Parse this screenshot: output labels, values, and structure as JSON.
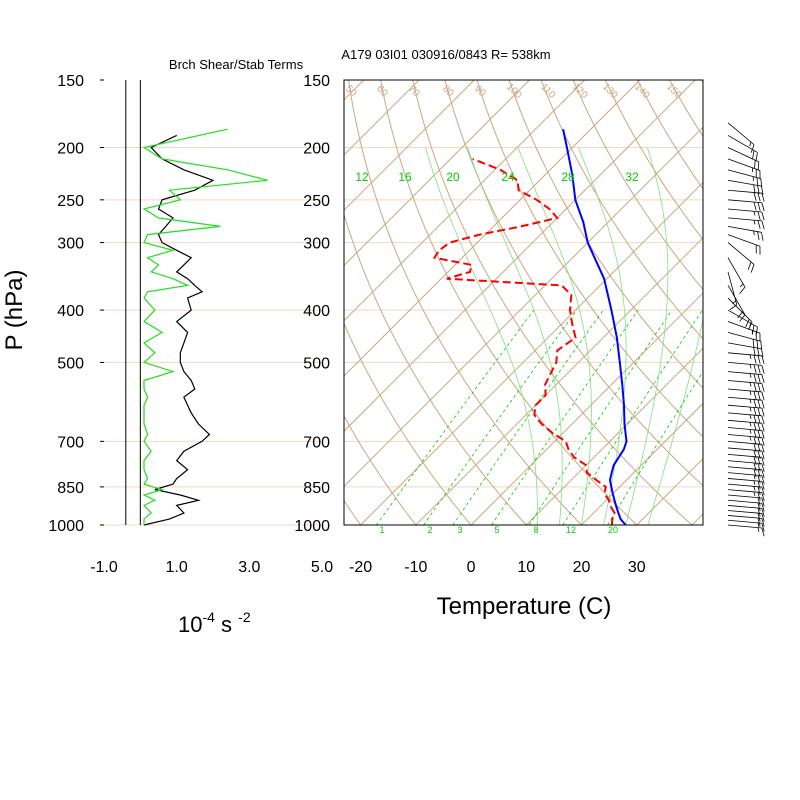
{
  "colors": {
    "background": "#ffffff",
    "axis": "#000000",
    "dry_adiabat": "#c8a882",
    "isotherm": "#c8a882",
    "mixing_ratio": "#00cc00",
    "moist_adiabat": "#7fe07f",
    "shear_term": "#000000",
    "stability_term": "#22dd22",
    "temperature": "#0000ff",
    "dewpoint": "#ff0000",
    "wind_barb": "#000000"
  },
  "chart_data": [
    {
      "type": "line",
      "title": "Brch Shear/Stab Terms",
      "ylabel": "P (hPa)",
      "xlabel_main": "10",
      "xlabel_sup1": "-4",
      "xlabel_unit": " s ",
      "xlabel_sup2": "-2",
      "y_scale": "log-pressure",
      "ylim": [
        1000,
        150
      ],
      "xlim": [
        -1.0,
        5.0
      ],
      "x_ticks": [
        -1.0,
        1.0,
        3.0,
        5.0
      ],
      "x_tick_labels": [
        "-1.0",
        "1.0",
        "3.0",
        "5.0"
      ],
      "y_ticks": [
        150,
        200,
        250,
        300,
        400,
        500,
        700,
        850,
        1000
      ],
      "y_tick_labels": [
        "150",
        "200",
        "250",
        "300",
        "400",
        "500",
        "700",
        "850",
        "1000"
      ],
      "reference_lines_x": [
        -0.4,
        0.0
      ],
      "series": [
        {
          "key": "shear",
          "p": [
            190,
            200,
            210,
            220,
            230,
            240,
            250,
            260,
            270,
            280,
            290,
            300,
            310,
            320,
            330,
            340,
            350,
            360,
            370,
            380,
            400,
            420,
            440,
            460,
            480,
            500,
            520,
            540,
            560,
            580,
            600,
            620,
            650,
            680,
            700,
            730,
            760,
            790,
            820,
            840,
            860,
            880,
            900,
            920,
            950,
            975,
            1000
          ],
          "x": [
            1.0,
            0.3,
            0.6,
            1.2,
            2.0,
            1.5,
            0.6,
            0.5,
            0.9,
            0.7,
            0.5,
            0.6,
            1.0,
            1.4,
            1.2,
            1.0,
            1.3,
            1.5,
            1.7,
            1.3,
            1.4,
            1.0,
            1.3,
            1.2,
            1.1,
            1.1,
            1.2,
            1.4,
            1.5,
            1.2,
            1.3,
            1.4,
            1.6,
            1.9,
            1.7,
            1.2,
            1.0,
            1.3,
            1.0,
            0.9,
            0.4,
            1.1,
            1.6,
            1.0,
            1.2,
            0.8,
            0.1
          ]
        },
        {
          "key": "stability",
          "p": [
            185,
            200,
            210,
            220,
            230,
            240,
            250,
            260,
            270,
            280,
            290,
            300,
            310,
            320,
            330,
            340,
            350,
            360,
            370,
            380,
            400,
            420,
            440,
            460,
            480,
            500,
            520,
            540,
            560,
            580,
            600,
            620,
            650,
            680,
            700,
            730,
            760,
            790,
            820,
            840,
            860,
            880,
            900,
            920,
            950,
            975,
            1000
          ],
          "x": [
            2.4,
            0.1,
            0.6,
            2.4,
            3.5,
            0.8,
            1.1,
            0.1,
            0.5,
            2.2,
            0.2,
            0.1,
            0.9,
            0.2,
            0.5,
            0.3,
            0.9,
            1.3,
            0.2,
            0.1,
            0.4,
            0.1,
            0.6,
            0.1,
            0.4,
            0.1,
            0.9,
            0.1,
            0.1,
            0.2,
            0.1,
            0.1,
            0.1,
            0.2,
            0.1,
            0.3,
            0.1,
            0.1,
            0.2,
            0.1,
            0.6,
            0.1,
            0.4,
            0.1,
            0.3,
            0.1,
            0.1
          ]
        }
      ]
    },
    {
      "type": "line",
      "title": "A179 03I01 030916/0843 R= 538km",
      "xlabel": "Temperature (C)",
      "y_scale": "log-pressure",
      "ylim": [
        1000,
        150
      ],
      "xlim": [
        -23,
        42
      ],
      "skew": "skew-T",
      "x_ticks": [
        -20,
        -10,
        0,
        10,
        20,
        30
      ],
      "x_tick_labels": [
        "-20",
        "-10",
        "0",
        "10",
        "20",
        "30"
      ],
      "y_ticks": [
        150,
        200,
        250,
        300,
        400,
        500,
        700,
        850,
        1000
      ],
      "y_tick_labels": [
        "150",
        "200",
        "250",
        "300",
        "400",
        "500",
        "700",
        "850",
        "1000"
      ],
      "mixing_ratio_labels": [
        "12",
        "16",
        "20",
        "24",
        "28",
        "32"
      ],
      "mixing_ratio_bottom_labels": [
        "1",
        "2",
        "3",
        "5",
        "8",
        "12",
        "20"
      ],
      "dry_adiabat_labels": [
        "50",
        "60",
        "70",
        "80",
        "90",
        "100",
        "110",
        "120",
        "130",
        "140",
        "150"
      ],
      "series": [
        {
          "key": "temperature",
          "p": [
            1000,
            975,
            950,
            925,
            900,
            875,
            850,
            825,
            800,
            775,
            750,
            725,
            700,
            650,
            600,
            550,
            500,
            450,
            400,
            350,
            300,
            275,
            250,
            225,
            200,
            185
          ],
          "t": [
            28.0,
            26.0,
            24.5,
            23.0,
            21.5,
            20.0,
            18.5,
            17.0,
            16.0,
            15.0,
            14.5,
            14.0,
            13.0,
            9.5,
            6.0,
            2.0,
            -2.5,
            -7.5,
            -13.5,
            -20.5,
            -30.0,
            -34.5,
            -40.0,
            -45.0,
            -51.0,
            -55.0
          ]
        },
        {
          "key": "dewpoint",
          "p": [
            1000,
            975,
            950,
            925,
            900,
            875,
            850,
            825,
            800,
            775,
            750,
            725,
            700,
            675,
            650,
            625,
            600,
            575,
            550,
            525,
            500,
            475,
            450,
            425,
            400,
            375,
            360,
            350,
            340,
            330,
            320,
            310,
            300,
            290,
            280,
            270,
            260,
            250,
            240,
            230,
            220,
            210
          ],
          "t": [
            25.5,
            24.5,
            23.8,
            22.0,
            20.5,
            18.5,
            17.5,
            14.5,
            11.5,
            10.0,
            6.5,
            4.0,
            2.0,
            -2.0,
            -5.5,
            -8.5,
            -10.0,
            -10.0,
            -12.0,
            -13.0,
            -14.0,
            -16.0,
            -15.0,
            -18.0,
            -21.0,
            -23.5,
            -27.0,
            -49.0,
            -46.0,
            -47.0,
            -55.0,
            -55.5,
            -55.0,
            -51.0,
            -45.0,
            -40.0,
            -43.0,
            -47.0,
            -52.0,
            -54.0,
            -59.0,
            -66.0
          ]
        }
      ]
    }
  ],
  "wind_barbs": {
    "p": [
      1000,
      980,
      960,
      940,
      920,
      900,
      880,
      860,
      840,
      820,
      800,
      780,
      760,
      740,
      720,
      700,
      680,
      660,
      640,
      620,
      600,
      580,
      560,
      540,
      520,
      500,
      480,
      460,
      440,
      420,
      400,
      380,
      360,
      340,
      320,
      300,
      290,
      280,
      270,
      260,
      250,
      240,
      230,
      220,
      210,
      200,
      190,
      180
    ],
    "speed_kt": [
      15,
      15,
      20,
      20,
      20,
      20,
      20,
      25,
      25,
      25,
      25,
      30,
      30,
      30,
      30,
      30,
      35,
      35,
      35,
      35,
      35,
      35,
      35,
      35,
      35,
      35,
      35,
      30,
      30,
      25,
      25,
      20,
      20,
      15,
      15,
      20,
      20,
      25,
      25,
      25,
      30,
      30,
      30,
      25,
      25,
      20,
      20,
      15
    ],
    "dir_deg": [
      95,
      95,
      95,
      95,
      95,
      95,
      95,
      95,
      95,
      95,
      95,
      95,
      95,
      95,
      95,
      95,
      95,
      95,
      95,
      95,
      95,
      95,
      95,
      95,
      95,
      95,
      95,
      100,
      105,
      110,
      120,
      135,
      150,
      165,
      150,
      130,
      110,
      100,
      95,
      95,
      95,
      95,
      100,
      105,
      110,
      115,
      120,
      130
    ]
  }
}
